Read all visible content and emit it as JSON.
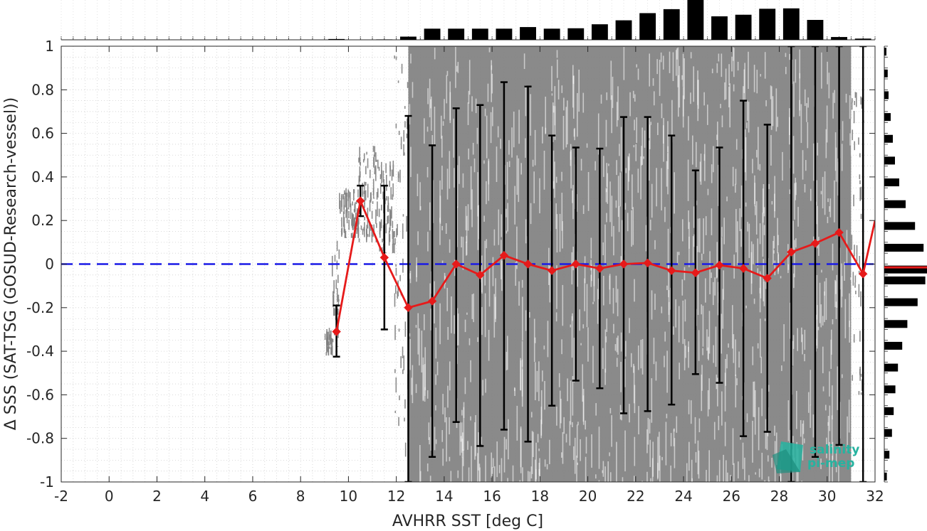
{
  "chart_data": {
    "type": "scatter",
    "xlabel": "AVHRR SST [deg C]",
    "ylabel": "Δ SSS (SAT-TSG (GOSUD-Research-vessel))",
    "xlim": [
      -2,
      32
    ],
    "ylim": [
      -1,
      1
    ],
    "x_ticks": [
      -2,
      0,
      2,
      4,
      6,
      8,
      10,
      12,
      14,
      16,
      18,
      20,
      22,
      24,
      26,
      28,
      30,
      32
    ],
    "y_ticks": [
      -1,
      -0.8,
      -0.6,
      -0.4,
      -0.2,
      0,
      0.2,
      0.4,
      0.6,
      0.8,
      1
    ],
    "y_tick_labels": [
      "-1",
      "-0.8",
      "-0.6",
      "-0.4",
      "-0.2",
      "0",
      "0.2",
      "0.4",
      "0.6",
      "0.8",
      "1"
    ],
    "grid": "dotted",
    "reference_line": {
      "y": 0,
      "color": "#1a1ae6",
      "style": "dashed"
    },
    "binned_stats": {
      "color": "#e61a1a",
      "x": [
        9.5,
        10.5,
        11.5,
        12.5,
        13.5,
        14.5,
        15.5,
        16.5,
        17.5,
        18.5,
        19.5,
        20.5,
        21.5,
        22.5,
        23.5,
        24.5,
        25.5,
        26.5,
        27.5,
        28.5,
        29.5,
        30.5,
        31.5
      ],
      "median": [
        -0.31,
        0.29,
        0.03,
        -0.2,
        -0.17,
        0.0,
        -0.05,
        0.04,
        0.0,
        -0.03,
        0.0,
        -0.02,
        0.0,
        0.005,
        -0.03,
        -0.04,
        -0.005,
        -0.02,
        -0.065,
        0.055,
        0.095,
        0.145,
        -0.045
      ],
      "lower": [
        -0.425,
        0.22,
        -0.3,
        -1.0,
        -0.885,
        -0.725,
        -0.835,
        -0.76,
        -0.815,
        -0.65,
        -0.535,
        -0.57,
        -0.685,
        -0.675,
        -0.645,
        -0.505,
        -0.545,
        -0.79,
        -0.77,
        -1.0,
        -0.885,
        -0.83,
        -1.0
      ],
      "upper": [
        -0.19,
        0.36,
        0.36,
        0.68,
        0.545,
        0.715,
        0.73,
        0.835,
        0.815,
        0.59,
        0.535,
        0.53,
        0.675,
        0.675,
        0.59,
        0.43,
        0.535,
        0.75,
        0.64,
        1.0,
        1.0,
        1.0,
        1.0
      ],
      "extra_segment": {
        "x": [
          31.5,
          32
        ],
        "y": [
          -0.045,
          0.2
        ]
      }
    },
    "scatter_cloud": {
      "color": "#808080",
      "density_by_x": [
        {
          "x": [
            9.0,
            9.3
          ],
          "y_range": [
            -0.42,
            -0.28
          ]
        },
        {
          "x": [
            9.3,
            9.6
          ],
          "y_range": [
            -0.38,
            0.18
          ]
        },
        {
          "x": [
            9.6,
            10.4
          ],
          "y_range": [
            0.12,
            0.35
          ]
        },
        {
          "x": [
            10.4,
            11.2
          ],
          "y_range": [
            0.1,
            0.55
          ]
        },
        {
          "x": [
            11.2,
            11.9
          ],
          "y_range": [
            0.05,
            0.48
          ]
        },
        {
          "x": [
            11.9,
            12.5
          ],
          "y_range": [
            -0.9,
            0.98
          ]
        },
        {
          "x": [
            12.5,
            31.0
          ],
          "y_range": [
            -1.0,
            1.0
          ]
        },
        {
          "x": [
            31.0,
            31.5
          ],
          "y_range": [
            -0.6,
            0.8
          ]
        }
      ]
    },
    "x_histogram": {
      "bin_centers": [
        9.5,
        10.5,
        11.5,
        12.5,
        13.5,
        14.5,
        15.5,
        16.5,
        17.5,
        18.5,
        19.5,
        20.5,
        21.5,
        22.5,
        23.5,
        24.5,
        25.5,
        26.5,
        27.5,
        28.5,
        29.5,
        30.5,
        31.5
      ],
      "relative_heights": [
        0.02,
        0.0,
        0.01,
        0.08,
        0.28,
        0.28,
        0.28,
        0.28,
        0.32,
        0.28,
        0.29,
        0.39,
        0.49,
        0.67,
        0.77,
        1.0,
        0.59,
        0.63,
        0.78,
        0.79,
        0.5,
        0.07,
        0.03
      ]
    },
    "y_histogram": {
      "bin_centers": [
        -0.975,
        -0.925,
        -0.875,
        -0.825,
        -0.775,
        -0.725,
        -0.675,
        -0.625,
        -0.575,
        -0.525,
        -0.475,
        -0.425,
        -0.375,
        -0.325,
        -0.275,
        -0.225,
        -0.175,
        -0.125,
        -0.075,
        -0.025,
        0.025,
        0.075,
        0.125,
        0.175,
        0.225,
        0.275,
        0.325,
        0.375,
        0.425,
        0.475,
        0.525,
        0.575,
        0.625,
        0.675,
        0.725,
        0.775,
        0.825,
        0.875,
        0.925,
        0.975
      ],
      "relative_heights": [
        0.06,
        0.0,
        0.12,
        0.0,
        0.18,
        0.0,
        0.22,
        0.0,
        0.26,
        0.0,
        0.32,
        0.0,
        0.42,
        0.0,
        0.54,
        0.0,
        0.78,
        0.0,
        0.96,
        1.0,
        0.0,
        0.92,
        0.0,
        0.72,
        0.0,
        0.5,
        0.0,
        0.35,
        0.0,
        0.25,
        0.0,
        0.2,
        0.0,
        0.15,
        0.0,
        0.1,
        0.0,
        0.08,
        0.0,
        0.05
      ],
      "median_marker": {
        "y": -0.015,
        "color": "#e61a1a"
      }
    }
  },
  "logo": {
    "line1": "salinity",
    "line2": "pi-mep",
    "color": "#26b3a0"
  }
}
